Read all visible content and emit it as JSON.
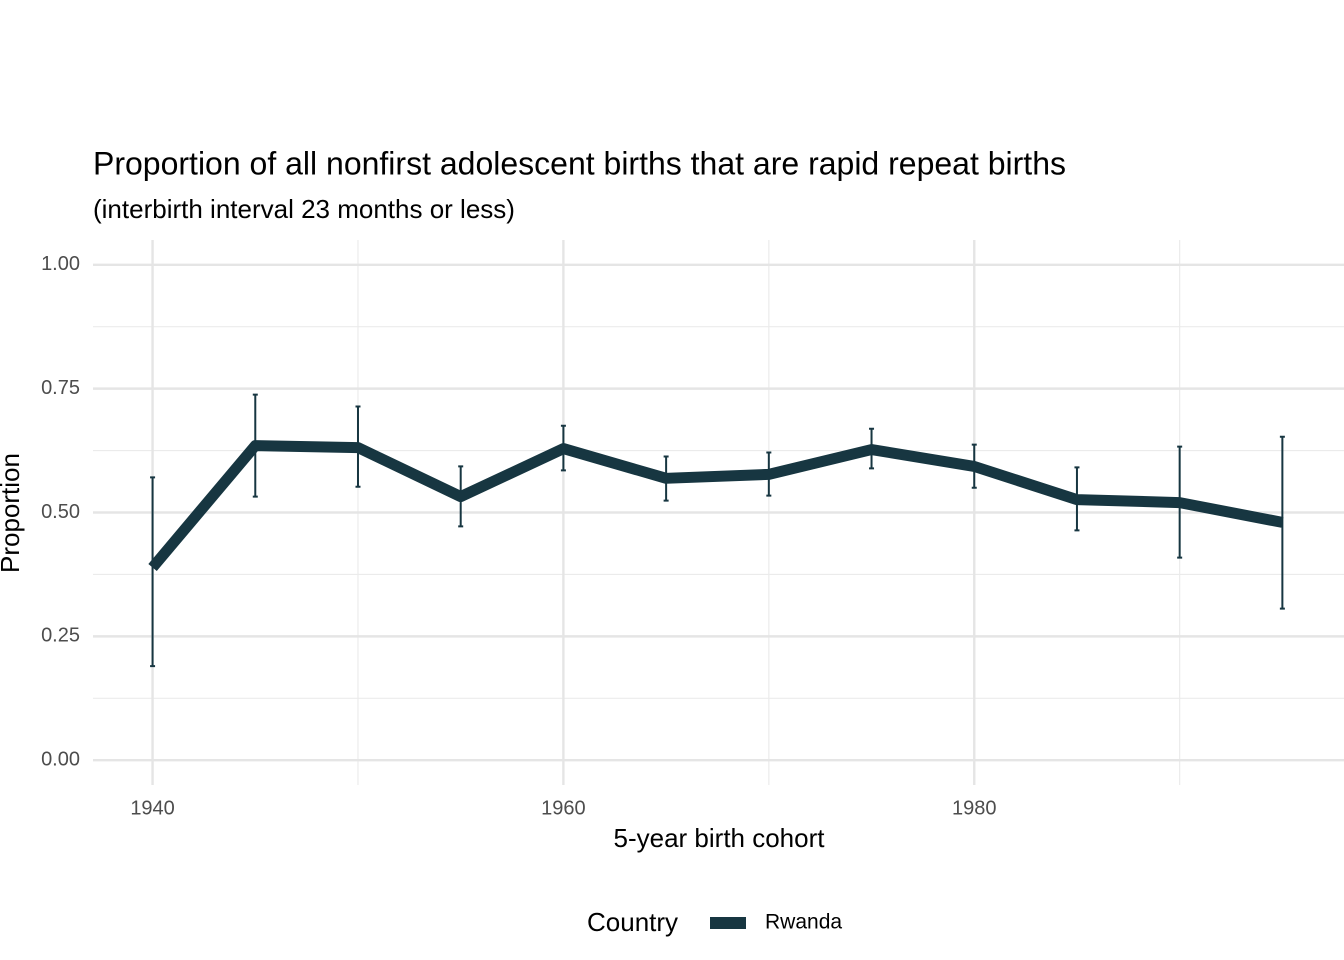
{
  "chart_data": {
    "type": "line",
    "title": "Proportion of all nonfirst adolescent births that are rapid repeat births",
    "subtitle": "(interbirth interval 23 months or less)",
    "x_label": "5-year birth cohort",
    "y_label": "Proportion",
    "x": [
      1940,
      1945,
      1950,
      1955,
      1960,
      1965,
      1970,
      1975,
      1980,
      1985,
      1990,
      1995
    ],
    "series": [
      {
        "name": "Rwanda",
        "color": "#173641",
        "values": [
          0.389,
          0.635,
          0.631,
          0.532,
          0.629,
          0.569,
          0.577,
          0.627,
          0.593,
          0.526,
          0.52,
          0.48
        ],
        "ci_low": [
          0.19,
          0.532,
          0.552,
          0.472,
          0.585,
          0.524,
          0.534,
          0.589,
          0.55,
          0.464,
          0.409,
          0.306
        ],
        "ci_high": [
          0.571,
          0.738,
          0.714,
          0.593,
          0.675,
          0.613,
          0.621,
          0.669,
          0.637,
          0.591,
          0.633,
          0.653
        ]
      }
    ],
    "legend_title": "Country",
    "legend": "bottom",
    "grid": true,
    "xlim": [
      1937.1,
      1998
    ],
    "ylim": [
      -0.05,
      1.05
    ],
    "xticks": [
      1940,
      1960,
      1980
    ],
    "xminor": [
      1950,
      1970,
      1990
    ],
    "yticks": [
      {
        "value": 0,
        "label": "0.00"
      },
      {
        "value": 0.25,
        "label": "0.25"
      },
      {
        "value": 0.5,
        "label": "0.50"
      },
      {
        "value": 0.75,
        "label": "0.75"
      },
      {
        "value": 1,
        "label": "1.00"
      }
    ],
    "yminor": [
      0.125,
      0.375,
      0.625,
      0.875
    ]
  }
}
